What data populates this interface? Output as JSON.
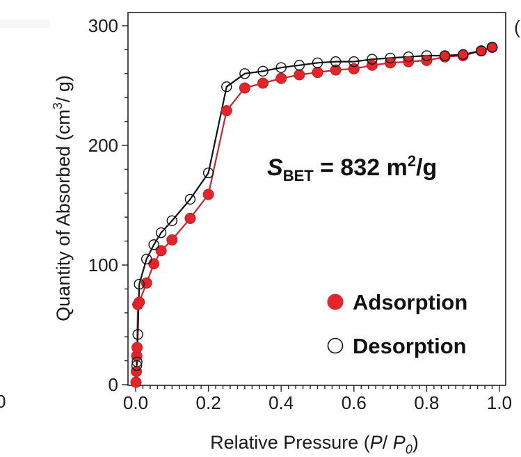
{
  "chart_data": {
    "type": "scatter",
    "xlabel_main": "Relative Pressure (",
    "xlabel_p": "P",
    "xlabel_sep": "/ ",
    "xlabel_p0": "P",
    "xlabel_p0_sub": "0",
    "xlabel_close": ")",
    "ylabel_main": "Quantity of Absorbed (cm",
    "ylabel_sup": "3",
    "ylabel_end": "/ g)",
    "xlim": [
      0,
      1.0
    ],
    "ylim": [
      0,
      300
    ],
    "x_ticks": [
      "0.0",
      "0.2",
      "0.4",
      "0.6",
      "0.8",
      "1.0"
    ],
    "y_ticks": [
      "0",
      "100",
      "200",
      "300"
    ],
    "annotation": {
      "s": "S",
      "sub": "BET",
      "value": " = 832 m",
      "sup": "2",
      "unit": "/g"
    },
    "legend_position": "bottom-right",
    "series": [
      {
        "name": "Adsorption",
        "color": "#e3242b",
        "marker": "filled-circle",
        "x": [
          0.001,
          0.002,
          0.003,
          0.004,
          0.006,
          0.01,
          0.03,
          0.05,
          0.07,
          0.1,
          0.15,
          0.2,
          0.25,
          0.3,
          0.35,
          0.4,
          0.45,
          0.5,
          0.55,
          0.6,
          0.65,
          0.7,
          0.75,
          0.8,
          0.85,
          0.9,
          0.95,
          0.98
        ],
        "y": [
          2,
          11,
          24,
          31,
          67,
          69,
          85,
          101,
          112,
          121,
          139,
          159,
          229,
          248,
          252,
          256,
          259,
          261,
          263,
          264,
          267,
          269,
          270,
          271,
          274,
          275,
          279,
          282
        ]
      },
      {
        "name": "Desorption",
        "color": "#111111",
        "marker": "open-circle",
        "x": [
          0.98,
          0.95,
          0.9,
          0.85,
          0.8,
          0.75,
          0.7,
          0.65,
          0.6,
          0.55,
          0.5,
          0.45,
          0.4,
          0.35,
          0.3,
          0.25,
          0.2,
          0.15,
          0.1,
          0.07,
          0.05,
          0.03,
          0.01,
          0.006,
          0.004,
          0.003
        ],
        "y": [
          282,
          279,
          276,
          275,
          275,
          274,
          273,
          272,
          270,
          270,
          269,
          267,
          265,
          262,
          260,
          249,
          177,
          155,
          137,
          127,
          117,
          105,
          84,
          42,
          19,
          16
        ]
      }
    ]
  },
  "edge_fragments": {
    "left_bottom": "0",
    "right_top": "("
  }
}
